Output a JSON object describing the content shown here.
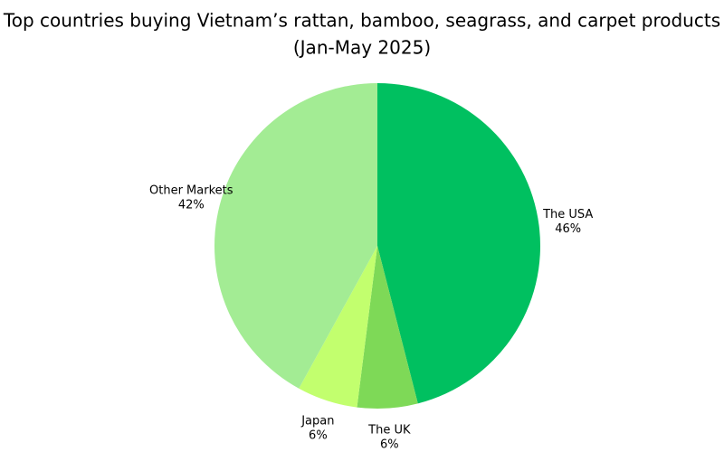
{
  "chart_data": {
    "type": "pie",
    "title": "Top countries buying Vietnam’s rattan, bamboo, seagrass, and carpet products",
    "subtitle": "(Jan-May 2025)",
    "categories": [
      "The USA",
      "The UK",
      "Japan",
      "Other Markets"
    ],
    "values": [
      46,
      6,
      6,
      42
    ],
    "value_labels": [
      "46%",
      "6%",
      "6%",
      "42%"
    ],
    "colors": [
      "#00c060",
      "#7ed957",
      "#c2ff6e",
      "#a3ec94"
    ]
  }
}
